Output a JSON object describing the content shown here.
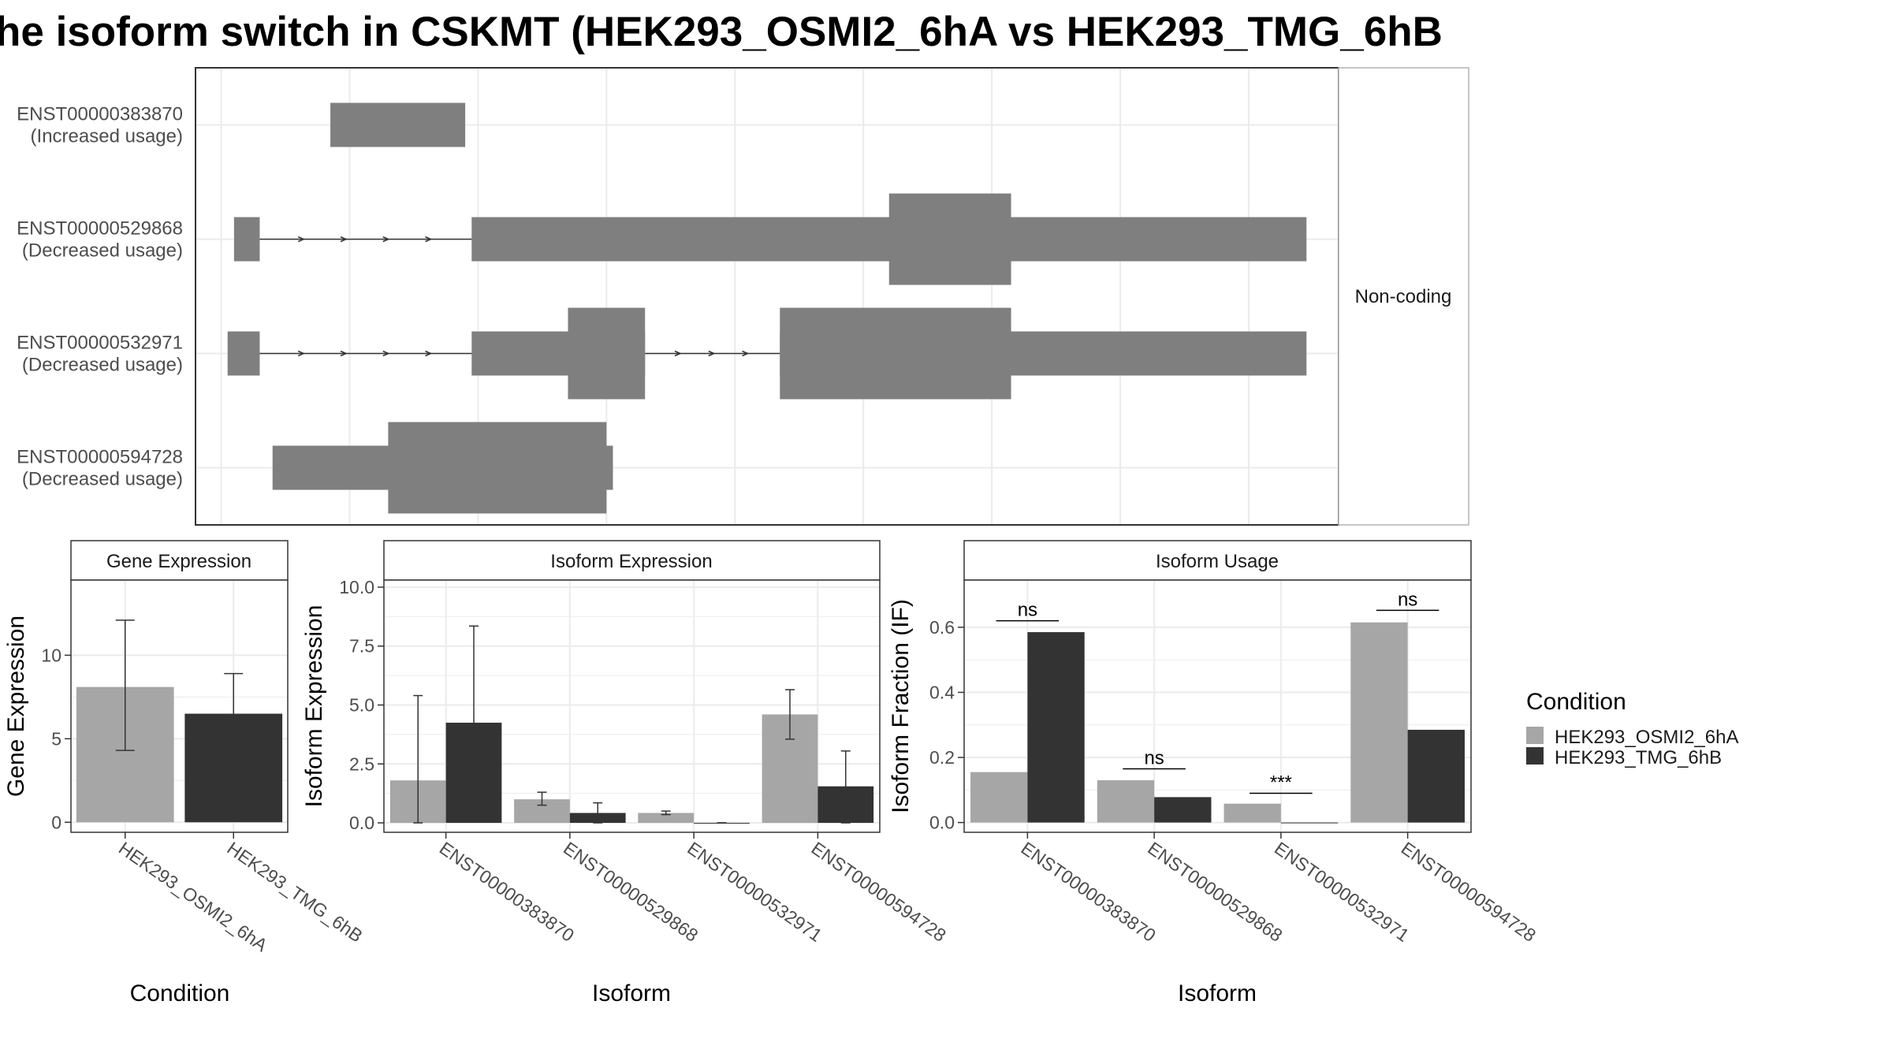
{
  "title": "he isoform switch in CSKMT (HEK293_OSMI2_6hA vs HEK293_TMG_6hB",
  "colors": {
    "condition_a": "#a6a6a6",
    "condition_b": "#333333",
    "structure": "#7f7f7f",
    "grid": "#ebebeb",
    "axis_text": "#4d4d4d"
  },
  "structure_panel": {
    "strip_label": "Non-coding",
    "transcripts": [
      {
        "id": "ENST00000383870",
        "note": "(Increased usage)",
        "exons": [
          [
            0.17,
            0.38
          ]
        ],
        "tall": [],
        "introns": []
      },
      {
        "id": "ENST00000529868",
        "note": "(Decreased usage)",
        "exons": [
          [
            0.02,
            0.06
          ],
          [
            0.39,
            1.69
          ]
        ],
        "tall": [
          [
            1.04,
            1.23
          ]
        ],
        "introns": [
          [
            0.06,
            0.39
          ]
        ]
      },
      {
        "id": "ENST00000532971",
        "note": "(Decreased usage)",
        "exons": [
          [
            0.01,
            0.06
          ],
          [
            0.39,
            0.66
          ],
          [
            0.87,
            1.69
          ]
        ],
        "tall": [
          [
            0.54,
            0.66
          ],
          [
            0.87,
            1.23
          ]
        ],
        "introns": [
          [
            0.06,
            0.39
          ],
          [
            0.66,
            0.87
          ]
        ]
      },
      {
        "id": "ENST00000594728",
        "note": "(Decreased usage)",
        "exons": [
          [
            0.08,
            0.61
          ]
        ],
        "tall": [
          [
            0.26,
            0.6
          ]
        ],
        "introns": []
      }
    ]
  },
  "chart_data": [
    {
      "type": "bar",
      "title": "Gene Expression",
      "xlabel": "Condition",
      "ylabel": "Gene Expression",
      "categories": [
        "HEK293_OSMI2_6hA",
        "HEK293_TMG_6hB"
      ],
      "values": [
        8.1,
        6.5
      ],
      "error_low": [
        4.3,
        4.3
      ],
      "error_high": [
        12.1,
        8.9
      ],
      "ylim": [
        -0.6,
        14.5
      ],
      "yticks": [
        0,
        5,
        10
      ],
      "ytick_labels": [
        "0",
        "5",
        "10"
      ]
    },
    {
      "type": "bar",
      "title": "Isoform Expression",
      "xlabel": "Isoform",
      "ylabel": "Isoform Expression",
      "categories": [
        "ENST00000383870",
        "ENST00000529868",
        "ENST00000532971",
        "ENST00000594728"
      ],
      "series": [
        {
          "name": "HEK293_OSMI2_6hA",
          "values": [
            1.8,
            1.0,
            0.42,
            4.6
          ],
          "error_low": [
            0.0,
            0.75,
            0.35,
            3.55
          ],
          "error_high": [
            5.4,
            1.3,
            0.5,
            5.65
          ]
        },
        {
          "name": "HEK293_TMG_6hB",
          "values": [
            4.25,
            0.42,
            0.0,
            1.55
          ],
          "error_low": [
            0.15,
            0.0,
            0.0,
            0.0
          ],
          "error_high": [
            8.35,
            0.85,
            0.0,
            3.05
          ]
        }
      ],
      "ylim": [
        -0.4,
        10.3
      ],
      "yticks": [
        0,
        2.5,
        5,
        7.5,
        10
      ],
      "ytick_labels": [
        "0.0",
        "2.5",
        "5.0",
        "7.5",
        "10.0"
      ]
    },
    {
      "type": "bar",
      "title": "Isoform Usage",
      "xlabel": "Isoform",
      "ylabel": "Isoform Fraction (IF)",
      "categories": [
        "ENST00000383870",
        "ENST00000529868",
        "ENST00000532971",
        "ENST00000594728"
      ],
      "series": [
        {
          "name": "HEK293_OSMI2_6hA",
          "values": [
            0.155,
            0.13,
            0.058,
            0.615
          ]
        },
        {
          "name": "HEK293_TMG_6hB",
          "values": [
            0.585,
            0.078,
            0.0,
            0.285
          ]
        }
      ],
      "significance": [
        {
          "label": "ns",
          "y": 0.62
        },
        {
          "label": "ns",
          "y": 0.165
        },
        {
          "label": "***",
          "y": 0.09
        },
        {
          "label": "ns",
          "y": 0.652
        }
      ],
      "ylim": [
        -0.03,
        0.745
      ],
      "yticks": [
        0.0,
        0.2,
        0.4,
        0.6
      ],
      "ytick_labels": [
        "0.0",
        "0.2",
        "0.4",
        "0.6"
      ]
    }
  ],
  "legend": {
    "title": "Condition",
    "items": [
      "HEK293_OSMI2_6hA",
      "HEK293_TMG_6hB"
    ]
  }
}
